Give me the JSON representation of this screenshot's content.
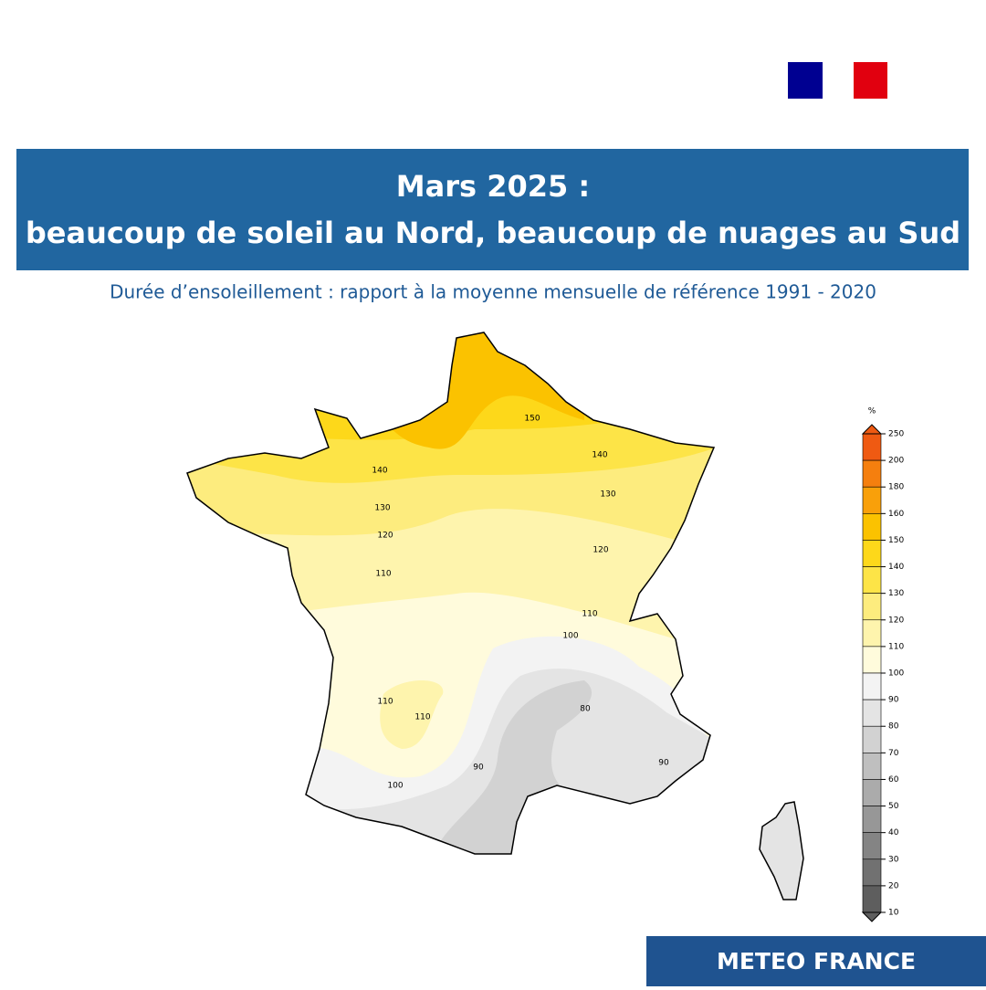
{
  "header": {
    "title_line1": "Mars 2025 :",
    "title_line2": "beaucoup de soleil au Nord, beaucoup de nuages au Sud",
    "subtitle": "Durée d’ensoleillement : rapport à la moyenne mensuelle de référence 1991 - 2020"
  },
  "map": {
    "contour_labels": [
      "150",
      "140",
      "140",
      "130",
      "130",
      "120",
      "120",
      "110",
      "110",
      "110",
      "110",
      "100",
      "100",
      "90",
      "90",
      "80"
    ]
  },
  "legend": {
    "unit": "%",
    "ticks": [
      250,
      200,
      180,
      160,
      150,
      140,
      130,
      120,
      110,
      100,
      90,
      80,
      70,
      60,
      50,
      40,
      30,
      20,
      10
    ],
    "colors": [
      "#ef5a12",
      "#f57f0e",
      "#f9a00a",
      "#fbc200",
      "#fdd81a",
      "#fde447",
      "#fdec7e",
      "#fef4ad",
      "#fffbdc",
      "#f3f3f3",
      "#e4e4e4",
      "#d2d2d2",
      "#bfbfbf",
      "#ababab",
      "#979797",
      "#848484",
      "#717171",
      "#5e5e5e"
    ]
  },
  "footer": {
    "brand": "METEO FRANCE"
  }
}
